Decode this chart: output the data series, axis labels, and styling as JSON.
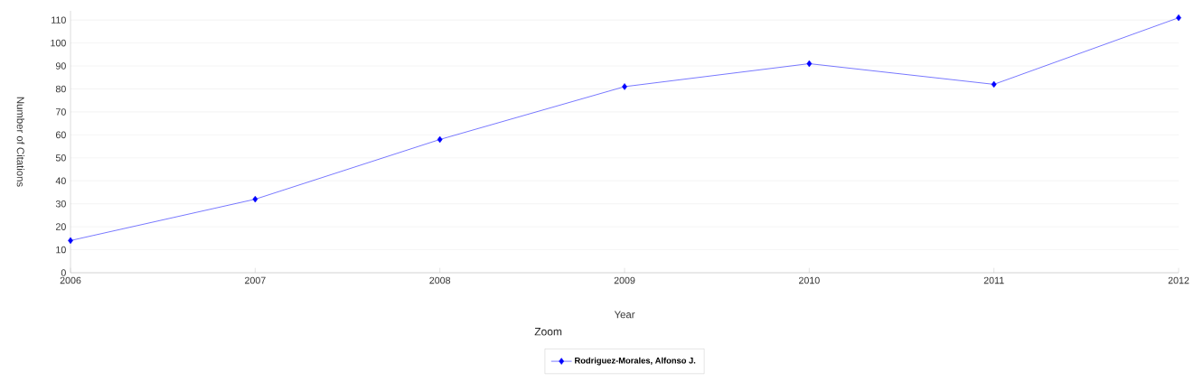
{
  "chart_data": {
    "type": "line",
    "xlabel": "Year",
    "ylabel": "Number of Citations",
    "x": [
      2006,
      2007,
      2008,
      2009,
      2010,
      2011,
      2012
    ],
    "series": [
      {
        "name": "Rodriguez-Morales, Alfonso J.",
        "color": "#0000ff",
        "values": [
          14,
          32,
          58,
          81,
          91,
          82,
          111
        ]
      }
    ],
    "xlim": [
      2006,
      2012
    ],
    "xticks": [
      2006,
      2007,
      2008,
      2009,
      2010,
      2011,
      2012
    ],
    "ylim": [
      0,
      114
    ],
    "yticks": [
      0,
      10,
      20,
      30,
      40,
      50,
      60,
      70,
      80,
      90,
      100,
      110
    ],
    "grid": "y",
    "legend": "bottom",
    "marker": "diamond",
    "line_style": "solid",
    "annotations": [
      "Zoom"
    ]
  }
}
